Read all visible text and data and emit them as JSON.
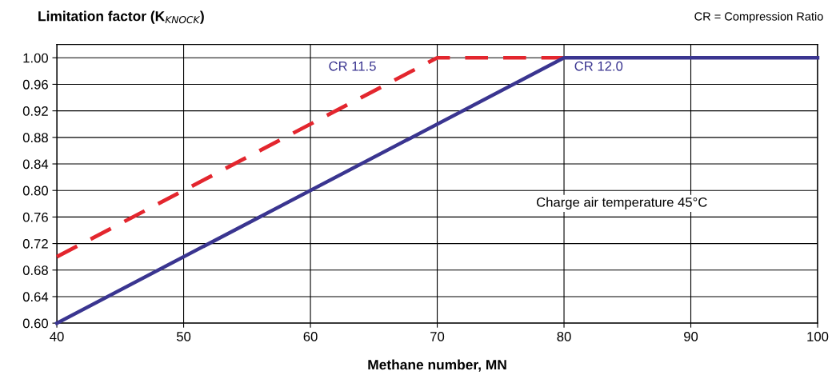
{
  "chart_data": {
    "type": "line",
    "ylabel": "Limitation factor (K$_{KNOCK}$)",
    "xlabel": "Methane number, MN",
    "annotations": [
      "CR = Compression Ratio",
      "Charge air temperature 45°C"
    ],
    "series": [
      {
        "name": "CR 11.5",
        "color": "#e3262e",
        "x": [
          40,
          70,
          80
        ],
        "values": [
          0.7,
          1.0,
          1.0
        ],
        "line_style": "dashed"
      },
      {
        "name": "CR 12.0",
        "color": "#3a3590",
        "x": [
          40,
          80,
          100
        ],
        "values": [
          0.6,
          1.0,
          1.0
        ],
        "line_style": "solid"
      }
    ],
    "xlim": [
      40,
      100
    ],
    "xticks": [
      40,
      50,
      60,
      70,
      80,
      90,
      100
    ],
    "ylim": [
      0.6,
      1.02
    ],
    "yticks": [
      {
        "value": 0.6,
        "label": "0.60"
      },
      {
        "value": 0.64,
        "label": "0.64"
      },
      {
        "value": 0.68,
        "label": "0.68"
      },
      {
        "value": 0.72,
        "label": "0.72"
      },
      {
        "value": 0.76,
        "label": "0.76"
      },
      {
        "value": 0.8,
        "label": "0.80"
      },
      {
        "value": 0.84,
        "label": "0.84"
      },
      {
        "value": 0.88,
        "label": "0.88"
      },
      {
        "value": 0.92,
        "label": "0.92"
      },
      {
        "value": 0.96,
        "label": "0.96"
      },
      {
        "value": 1.0,
        "label": "1.00"
      }
    ],
    "grid": true,
    "legend": false,
    "marker": "none"
  }
}
